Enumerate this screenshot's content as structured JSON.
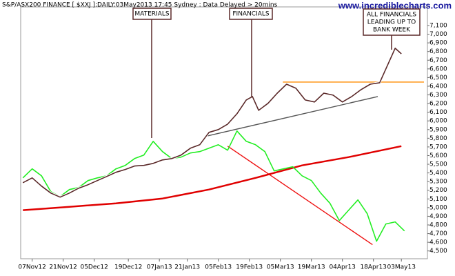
{
  "chart_data": {
    "type": "line",
    "title": "S&P/ASX200 FINANCE [ $XXJ ]:DAILY:03May2013 17:45 Sydney : Data Delayed > 20mins",
    "watermark": "www.incrediblecharts.com",
    "xlim": [
      -0.7,
      130.4
    ],
    "xticks": [
      {
        "value": 3,
        "label": "07Nov12"
      },
      {
        "value": 13,
        "label": "21Nov12"
      },
      {
        "value": 23,
        "label": "05Dec12"
      },
      {
        "value": 34,
        "label": "19Dec12"
      },
      {
        "value": 44,
        "label": "07Jan13"
      },
      {
        "value": 53,
        "label": "21Jan13"
      },
      {
        "value": 63,
        "label": "05Feb13"
      },
      {
        "value": 73,
        "label": "19Feb13"
      },
      {
        "value": 83,
        "label": "05Mar13"
      },
      {
        "value": 93,
        "label": "19Mar13"
      },
      {
        "value": 103,
        "label": "04Apr13"
      },
      {
        "value": 113,
        "label": "18Apr13"
      },
      {
        "value": 122,
        "label": "03May13"
      }
    ],
    "ylim": [
      4410,
      7315
    ],
    "yticks": [
      {
        "value": 4500,
        "label": "4,500"
      },
      {
        "value": 4600,
        "label": "4,600"
      },
      {
        "value": 4700,
        "label": "4,700"
      },
      {
        "value": 4800,
        "label": "4,800"
      },
      {
        "value": 4900,
        "label": "4,900"
      },
      {
        "value": 5000,
        "label": "5,000"
      },
      {
        "value": 5100,
        "label": "5,100"
      },
      {
        "value": 5200,
        "label": "5,200"
      },
      {
        "value": 5300,
        "label": "5,300"
      },
      {
        "value": 5400,
        "label": "5,400"
      },
      {
        "value": 5500,
        "label": "5,500"
      },
      {
        "value": 5600,
        "label": "5,600"
      },
      {
        "value": 5700,
        "label": "5,700"
      },
      {
        "value": 5800,
        "label": "5,800"
      },
      {
        "value": 5900,
        "label": "5,900"
      },
      {
        "value": 6000,
        "label": "6,000"
      },
      {
        "value": 6100,
        "label": "6,100"
      },
      {
        "value": 6200,
        "label": "6,200"
      },
      {
        "value": 6300,
        "label": "6,300"
      },
      {
        "value": 6400,
        "label": "6,400"
      },
      {
        "value": 6500,
        "label": "6,500"
      },
      {
        "value": 6600,
        "label": "6,600"
      },
      {
        "value": 6700,
        "label": "6,700"
      },
      {
        "value": 6800,
        "label": "6,800"
      },
      {
        "value": 6900,
        "label": "6,900"
      },
      {
        "value": 7000,
        "label": "7,000"
      },
      {
        "value": 7100,
        "label": "7,100"
      }
    ],
    "series": [
      {
        "color": "#e00000",
        "width": 2.5,
        "x": [
          0,
          15,
          30,
          45,
          60,
          75,
          90,
          105,
          122
        ],
        "values": [
          4970,
          5009,
          5049,
          5105,
          5208,
          5343,
          5487,
          5582,
          5709
        ]
      },
      {
        "color": "#22ee22",
        "width": 1.6,
        "x": [
          0,
          3,
          6,
          9,
          12,
          15,
          18,
          21,
          24,
          27,
          30,
          33,
          36,
          39,
          42,
          45,
          48,
          51,
          54,
          57,
          60,
          63,
          66,
          69,
          72,
          75,
          78,
          81,
          84,
          87,
          90,
          93,
          96,
          99,
          102,
          105,
          108,
          111,
          114,
          117,
          120,
          123
        ],
        "values": [
          5343,
          5447,
          5367,
          5184,
          5128,
          5208,
          5232,
          5312,
          5343,
          5367,
          5447,
          5487,
          5566,
          5606,
          5765,
          5646,
          5566,
          5582,
          5630,
          5646,
          5685,
          5725,
          5662,
          5884,
          5765,
          5725,
          5646,
          5423,
          5447,
          5471,
          5367,
          5312,
          5168,
          5049,
          4850,
          4970,
          5089,
          4930,
          4612,
          4811,
          4835,
          4731
        ]
      },
      {
        "color": "#5a2828",
        "width": 1.6,
        "x": [
          0,
          3,
          6,
          9,
          12,
          15,
          18,
          21,
          24,
          27,
          30,
          33,
          36,
          39,
          42,
          45,
          48,
          51,
          54,
          57,
          60,
          63,
          66,
          69,
          72,
          74,
          76,
          79,
          82,
          85,
          88,
          91,
          94,
          97,
          100,
          103,
          106,
          109,
          112,
          115,
          118,
          120,
          122
        ],
        "values": [
          5287,
          5343,
          5248,
          5168,
          5121,
          5168,
          5224,
          5264,
          5312,
          5359,
          5407,
          5440,
          5480,
          5487,
          5510,
          5550,
          5566,
          5606,
          5685,
          5725,
          5868,
          5900,
          5963,
          6082,
          6241,
          6281,
          6122,
          6202,
          6320,
          6424,
          6377,
          6241,
          6218,
          6320,
          6297,
          6218,
          6281,
          6361,
          6424,
          6440,
          6679,
          6838,
          6774
        ]
      }
    ],
    "trendlines": [
      {
        "color": "#ff8c00",
        "x": [
          83.8,
          129.3
        ],
        "values": [
          6448,
          6448
        ]
      },
      {
        "color": "#555555",
        "x": [
          58.7,
          114.4
        ],
        "values": [
          5820,
          6281
        ]
      },
      {
        "color": "#ee1111",
        "x": [
          66,
          112.7
        ],
        "values": [
          5709,
          4572
        ]
      }
    ],
    "annotations": [
      {
        "lines": [
          "MATERIALS"
        ]
      },
      {
        "lines": [
          "FINANCIALS"
        ]
      },
      {
        "lines": [
          "ALL FINANCIALS",
          "LEADING UP TO",
          "BANK WEEK"
        ]
      }
    ]
  }
}
